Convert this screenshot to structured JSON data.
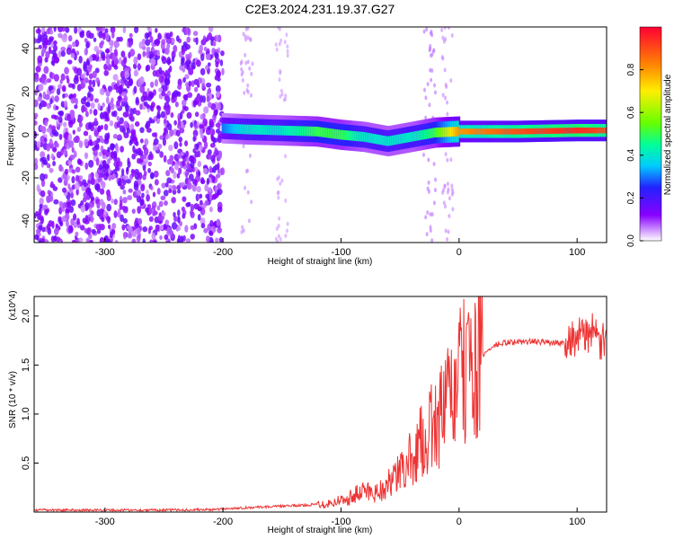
{
  "title": "C2E3.2024.231.19.37.G27",
  "chart_data": [
    {
      "type": "heatmap",
      "xlabel": "Height of straight line (km)",
      "ylabel": "Frequency (Hz)",
      "xlim": [
        -360,
        125
      ],
      "ylim": [
        -50,
        50
      ],
      "xticks": [
        -300,
        -200,
        -100,
        0,
        100
      ],
      "yticks": [
        -40,
        -20,
        0,
        20,
        40
      ],
      "colorbar": {
        "label": "Normalized spectral amplitude",
        "range": [
          0,
          1
        ],
        "ticks": [
          0.0,
          0.2,
          0.4,
          0.6,
          0.8
        ]
      },
      "signal_band": [
        {
          "x": -200,
          "f": 3.0,
          "amp": 0.3
        },
        {
          "x": -180,
          "f": 2.5,
          "amp": 0.4
        },
        {
          "x": -150,
          "f": 2.0,
          "amp": 0.4
        },
        {
          "x": -120,
          "f": 1.5,
          "amp": 0.5
        },
        {
          "x": -100,
          "f": 0.0,
          "amp": 0.5
        },
        {
          "x": -80,
          "f": -1.0,
          "amp": 0.4
        },
        {
          "x": -60,
          "f": -3.0,
          "amp": 0.4
        },
        {
          "x": -40,
          "f": -1.0,
          "amp": 0.4
        },
        {
          "x": -20,
          "f": 1.0,
          "amp": 0.5
        },
        {
          "x": 0,
          "f": 1.5,
          "amp": 0.8
        },
        {
          "x": 50,
          "f": 1.5,
          "amp": 0.9
        },
        {
          "x": 100,
          "f": 2.0,
          "amp": 0.95
        },
        {
          "x": 125,
          "f": 2.0,
          "amp": 0.9
        }
      ]
    },
    {
      "type": "line",
      "xlabel": "Height of straight line (km)",
      "ylabel": "SNR (10 * v/v)",
      "yscale_label": "(x10^4)",
      "xlim": [
        -360,
        125
      ],
      "ylim": [
        0,
        2.2
      ],
      "xticks": [
        -300,
        -200,
        -100,
        0,
        100
      ],
      "yticks": [
        0.5,
        1.0,
        1.5,
        2.0
      ],
      "series": [
        {
          "color": "#ee3333",
          "x": [
            -360,
            -300,
            -250,
            -210,
            -200,
            -190,
            -170,
            -150,
            -130,
            -110,
            -100,
            -90,
            -80,
            -70,
            -60,
            -50,
            -40,
            -30,
            -20,
            -10,
            0,
            10,
            20,
            30,
            40,
            60,
            80,
            90,
            95,
            100,
            110,
            120,
            125
          ],
          "y": [
            0.02,
            0.02,
            0.02,
            0.025,
            0.03,
            0.04,
            0.05,
            0.06,
            0.07,
            0.09,
            0.12,
            0.16,
            0.22,
            0.2,
            0.28,
            0.4,
            0.55,
            0.75,
            0.9,
            1.1,
            1.35,
            1.5,
            1.6,
            1.7,
            1.73,
            1.74,
            1.73,
            1.72,
            1.8,
            1.75,
            1.85,
            1.72,
            1.7
          ]
        }
      ]
    }
  ]
}
